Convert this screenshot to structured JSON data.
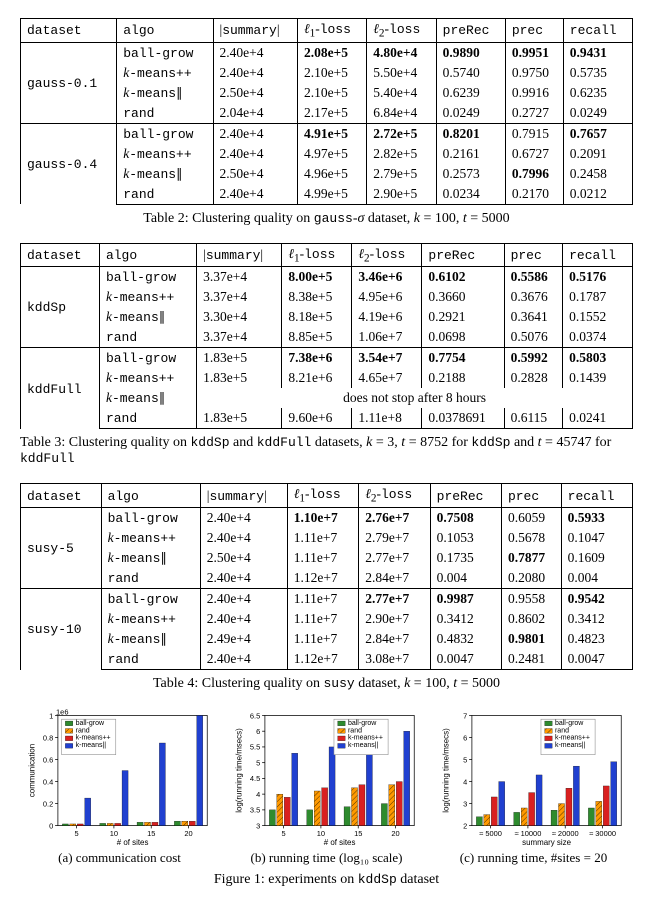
{
  "colors": {
    "ball_grow": "#2e8b2e",
    "rand": "#ff9900",
    "kmeanspp": "#d92020",
    "kmeanspar": "#2040d0",
    "hatch": "#000000"
  },
  "legend_labels": [
    "ball-grow",
    "rand",
    "k-means++",
    "k-means||"
  ],
  "table2": {
    "headers": [
      "dataset",
      "algo",
      "|summary|",
      "ℓ₁-loss",
      "ℓ₂-loss",
      "preRec",
      "prec",
      "recall"
    ],
    "groups": [
      {
        "dataset": "gauss-0.1",
        "rows": [
          {
            "algo": "ball-grow",
            "summary": "2.40e+4",
            "l1": "2.08e+5",
            "l1b": true,
            "l2": "4.80e+4",
            "l2b": true,
            "preRec": "0.9890",
            "preRecb": true,
            "prec": "0.9951",
            "precb": true,
            "recall": "0.9431",
            "recallb": true
          },
          {
            "algo_it": "k-means++",
            "summary": "2.40e+4",
            "l1": "2.10e+5",
            "l2": "5.50e+4",
            "preRec": "0.5740",
            "prec": "0.9750",
            "recall": "0.5735"
          },
          {
            "algo_it": "k-means∥",
            "summary": "2.50e+4",
            "l1": "2.10e+5",
            "l2": "5.40e+4",
            "preRec": "0.6239",
            "prec": "0.9916",
            "recall": "0.6235"
          },
          {
            "algo": "rand",
            "summary": "2.04e+4",
            "l1": "2.17e+5",
            "l2": "6.84e+4",
            "preRec": "0.0249",
            "prec": "0.2727",
            "recall": "0.0249"
          }
        ]
      },
      {
        "dataset": "gauss-0.4",
        "rows": [
          {
            "algo": "ball-grow",
            "summary": "2.40e+4",
            "l1": "4.91e+5",
            "l1b": true,
            "l2": "2.72e+5",
            "l2b": true,
            "preRec": "0.8201",
            "preRecb": true,
            "prec": "0.7915",
            "recall": "0.7657",
            "recallb": true
          },
          {
            "algo_it": "k-means++",
            "summary": "2.40e+4",
            "l1": "4.97e+5",
            "l2": "2.82e+5",
            "preRec": "0.2161",
            "prec": "0.6727",
            "recall": "0.2091"
          },
          {
            "algo_it": "k-means∥",
            "summary": "2.50e+4",
            "l1": "4.96e+5",
            "l2": "2.79e+5",
            "preRec": "0.2573",
            "prec": "0.7996",
            "precb": true,
            "recall": "0.2458"
          },
          {
            "algo": "rand",
            "summary": "2.40e+4",
            "l1": "4.99e+5",
            "l2": "2.90e+5",
            "preRec": "0.0234",
            "prec": "0.2170",
            "recall": "0.0212"
          }
        ]
      }
    ],
    "caption": "Table 2: Clustering quality on gauss-σ dataset, k = 100, t = 5000"
  },
  "table3": {
    "headers": [
      "dataset",
      "algo",
      "|summary|",
      "ℓ₁-loss",
      "ℓ₂-loss",
      "preRec",
      "prec",
      "recall"
    ],
    "groups": [
      {
        "dataset": "kddSp",
        "rows": [
          {
            "algo": "ball-grow",
            "summary": "3.37e+4",
            "l1": "8.00e+5",
            "l1b": true,
            "l2": "3.46e+6",
            "l2b": true,
            "preRec": "0.6102",
            "preRecb": true,
            "prec": "0.5586",
            "precb": true,
            "recall": "0.5176",
            "recallb": true
          },
          {
            "algo_it": "k-means++",
            "summary": "3.37e+4",
            "l1": "8.38e+5",
            "l2": "4.95e+6",
            "preRec": "0.3660",
            "prec": "0.3676",
            "recall": "0.1787"
          },
          {
            "algo_it": "k-means∥",
            "summary": "3.30e+4",
            "l1": "8.18e+5",
            "l2": "4.19e+6",
            "preRec": "0.2921",
            "prec": "0.3641",
            "recall": "0.1552"
          },
          {
            "algo": "rand",
            "summary": "3.37e+4",
            "l1": "8.85e+5",
            "l2": "1.06e+7",
            "preRec": "0.0698",
            "prec": "0.5076",
            "recall": "0.0374"
          }
        ]
      },
      {
        "dataset": "kddFull",
        "rows": [
          {
            "algo": "ball-grow",
            "summary": "1.83e+5",
            "l1": "7.38e+6",
            "l1b": true,
            "l2": "3.54e+7",
            "l2b": true,
            "preRec": "0.7754",
            "preRecb": true,
            "prec": "0.5992",
            "precb": true,
            "recall": "0.5803",
            "recallb": true
          },
          {
            "algo_it": "k-means++",
            "summary": "1.83e+5",
            "l1": "8.21e+6",
            "l2": "4.65e+7",
            "preRec": "0.2188",
            "prec": "0.2828",
            "recall": "0.1439"
          },
          {
            "algo_it": "k-means∥",
            "note": "does not stop after 8 hours"
          },
          {
            "algo": "rand",
            "summary": "1.83e+5",
            "l1": "9.60e+6",
            "l2": "1.11e+8",
            "preRec": "0.0378691",
            "prec": "0.6115",
            "recall": "0.0241"
          }
        ]
      }
    ],
    "caption": "Table 3: Clustering quality on kddSp and kddFull datasets, k = 3, t = 8752 for kddSp and t = 45747 for kddFull"
  },
  "table4": {
    "headers": [
      "dataset",
      "algo",
      "|summary|",
      "ℓ₁-loss",
      "ℓ₂-loss",
      "preRec",
      "prec",
      "recall"
    ],
    "groups": [
      {
        "dataset": "susy-5",
        "rows": [
          {
            "algo": "ball-grow",
            "summary": "2.40e+4",
            "l1": "1.10e+7",
            "l1b": true,
            "l2": "2.76e+7",
            "l2b": true,
            "preRec": "0.7508",
            "preRecb": true,
            "prec": "0.6059",
            "recall": "0.5933",
            "recallb": true
          },
          {
            "algo_it": "k-means++",
            "summary": "2.40e+4",
            "l1": "1.11e+7",
            "l2": "2.79e+7",
            "preRec": "0.1053",
            "prec": "0.5678",
            "recall": "0.1047"
          },
          {
            "algo_it": "k-means∥",
            "summary": "2.50e+4",
            "l1": "1.11e+7",
            "l2": "2.77e+7",
            "preRec": "0.1735",
            "prec": "0.7877",
            "precb": true,
            "recall": "0.1609"
          },
          {
            "algo": "rand",
            "summary": "2.40e+4",
            "l1": "1.12e+7",
            "l2": "2.84e+7",
            "preRec": "0.004",
            "prec": "0.2080",
            "recall": "0.004"
          }
        ]
      },
      {
        "dataset": "susy-10",
        "rows": [
          {
            "algo": "ball-grow",
            "summary": "2.40e+4",
            "l1": "1.11e+7",
            "l2": "2.77e+7",
            "l2b": true,
            "preRec": "0.9987",
            "preRecb": true,
            "prec": "0.9558",
            "recall": "0.9542",
            "recallb": true
          },
          {
            "algo_it": "k-means++",
            "summary": "2.40e+4",
            "l1": "1.11e+7",
            "l2": "2.90e+7",
            "preRec": "0.3412",
            "prec": "0.8602",
            "recall": "0.3412"
          },
          {
            "algo_it": "k-means∥",
            "summary": "2.49e+4",
            "l1": "1.11e+7",
            "l2": "2.84e+7",
            "preRec": "0.4832",
            "prec": "0.9801",
            "precb": true,
            "recall": "0.4823"
          },
          {
            "algo": "rand",
            "summary": "2.40e+4",
            "l1": "1.12e+7",
            "l2": "3.08e+7",
            "preRec": "0.0047",
            "prec": "0.2481",
            "recall": "0.0047"
          }
        ]
      }
    ],
    "caption": "Table 4: Clustering quality on susy dataset, k = 100, t = 5000"
  },
  "charts": {
    "a": {
      "type": "bar",
      "title": "",
      "xlabel": "# of sites",
      "ylabel": "communication",
      "ylabel_exp": "1e6",
      "categories": [
        "5",
        "10",
        "15",
        "20"
      ],
      "yticks": [
        0.0,
        0.2,
        0.4,
        0.6,
        0.8,
        1.0
      ],
      "ylim": [
        0,
        1.0
      ],
      "series": {
        "ball_grow": [
          0.015,
          0.02,
          0.03,
          0.04
        ],
        "rand": [
          0.015,
          0.02,
          0.03,
          0.04
        ],
        "kmeanspp": [
          0.015,
          0.02,
          0.03,
          0.04
        ],
        "kmeanspar": [
          0.25,
          0.5,
          0.75,
          1.0
        ]
      },
      "sub": "(a) communication cost"
    },
    "b": {
      "type": "bar",
      "xlabel": "# of sites",
      "ylabel": "log(running time/msecs)",
      "categories": [
        "5",
        "10",
        "15",
        "20"
      ],
      "yticks": [
        3.0,
        3.5,
        4.0,
        4.5,
        5.0,
        5.5,
        6.0,
        6.5
      ],
      "ylim": [
        3.0,
        6.5
      ],
      "series": {
        "ball_grow": [
          3.5,
          3.5,
          3.6,
          3.7
        ],
        "rand": [
          4.0,
          4.1,
          4.2,
          4.3
        ],
        "kmeanspp": [
          3.9,
          4.2,
          4.3,
          4.4
        ],
        "kmeanspar": [
          5.3,
          5.5,
          5.8,
          6.0
        ]
      },
      "sub": "(b) running time (log₁₀ scale)"
    },
    "c": {
      "type": "bar",
      "xlabel": "summary size",
      "ylabel": "log(running time/msecs)",
      "categories": [
        "≈ 5000",
        "≈ 10000",
        "≈ 20000",
        "≈ 30000"
      ],
      "yticks": [
        2,
        3,
        4,
        5,
        6,
        7
      ],
      "ylim": [
        2,
        7
      ],
      "series": {
        "ball_grow": [
          2.4,
          2.6,
          2.7,
          2.8
        ],
        "rand": [
          2.5,
          2.8,
          3.0,
          3.1
        ],
        "kmeanspp": [
          3.3,
          3.5,
          3.7,
          3.8
        ],
        "kmeanspar": [
          4.0,
          4.3,
          4.7,
          4.9
        ]
      },
      "sub": "(c) running time, #sites = 20"
    },
    "caption": "Figure 1: experiments on kddSp dataset"
  }
}
